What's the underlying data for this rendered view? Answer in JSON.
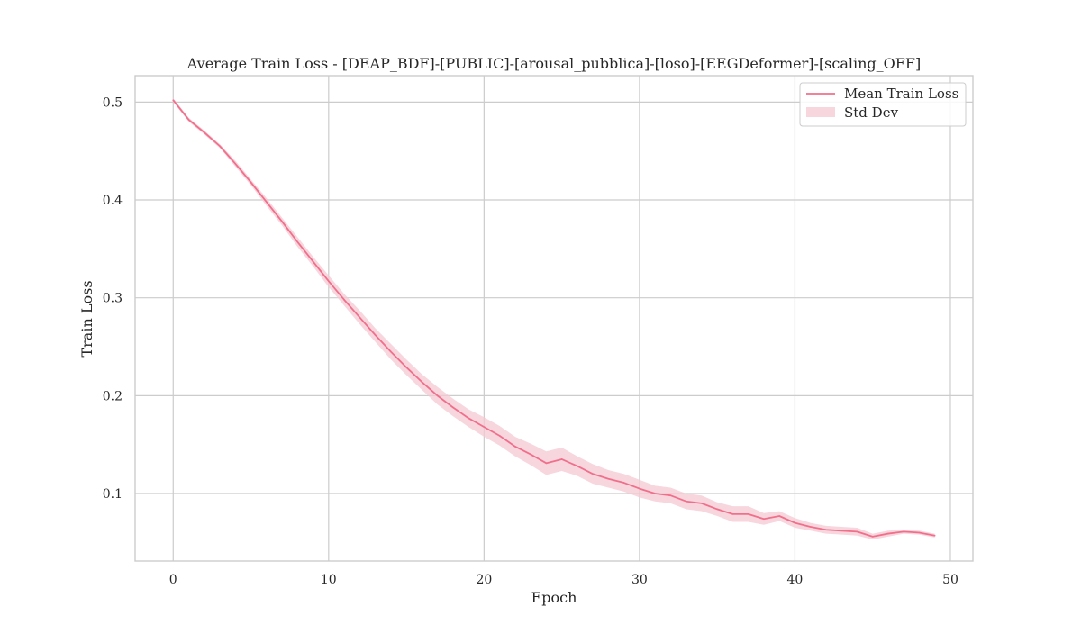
{
  "chart_data": {
    "type": "line",
    "title": "Average Train Loss - [DEAP_BDF]-[PUBLIC]-[arousal_pubblica]-[loso]-[EEGDeformer]-[scaling_OFF]",
    "xlabel": "Epoch",
    "ylabel": "Train Loss",
    "xlim": [
      -2.45,
      51.45
    ],
    "ylim": [
      0.031,
      0.527
    ],
    "x_ticks": [
      0,
      10,
      20,
      30,
      40,
      50
    ],
    "y_ticks": [
      0.1,
      0.2,
      0.3,
      0.4,
      0.5
    ],
    "x_tick_labels": [
      "0",
      "10",
      "20",
      "30",
      "40",
      "50"
    ],
    "y_tick_labels": [
      "0.1",
      "0.2",
      "0.3",
      "0.4",
      "0.5"
    ],
    "grid": true,
    "legend": {
      "placement": "top-right",
      "entries": [
        "Mean Train Loss",
        "Std Dev"
      ]
    },
    "colors": {
      "line": "#f0708c",
      "band": "#f6c8d3",
      "grid": "#cccccc",
      "frame": "#cccccc"
    },
    "x": [
      0,
      1,
      2,
      3,
      4,
      5,
      6,
      7,
      8,
      9,
      10,
      11,
      12,
      13,
      14,
      15,
      16,
      17,
      18,
      19,
      20,
      21,
      22,
      23,
      24,
      25,
      26,
      27,
      28,
      29,
      30,
      31,
      32,
      33,
      34,
      35,
      36,
      37,
      38,
      39,
      40,
      41,
      42,
      43,
      44,
      45,
      46,
      47,
      48,
      49
    ],
    "series": [
      {
        "name": "Mean Train Loss",
        "values": [
          0.502,
          0.482,
          0.469,
          0.455,
          0.437,
          0.418,
          0.398,
          0.378,
          0.357,
          0.337,
          0.317,
          0.298,
          0.28,
          0.262,
          0.245,
          0.229,
          0.214,
          0.2,
          0.188,
          0.177,
          0.168,
          0.159,
          0.148,
          0.14,
          0.131,
          0.135,
          0.128,
          0.12,
          0.115,
          0.111,
          0.105,
          0.1,
          0.098,
          0.092,
          0.09,
          0.084,
          0.079,
          0.079,
          0.074,
          0.077,
          0.07,
          0.066,
          0.063,
          0.062,
          0.061,
          0.056,
          0.059,
          0.061,
          0.06,
          0.057
        ],
        "std": [
          0.002,
          0.002,
          0.002,
          0.002,
          0.003,
          0.003,
          0.004,
          0.004,
          0.005,
          0.005,
          0.006,
          0.006,
          0.007,
          0.007,
          0.008,
          0.008,
          0.008,
          0.009,
          0.009,
          0.009,
          0.01,
          0.01,
          0.01,
          0.011,
          0.012,
          0.012,
          0.01,
          0.01,
          0.009,
          0.009,
          0.009,
          0.008,
          0.008,
          0.008,
          0.008,
          0.007,
          0.008,
          0.008,
          0.006,
          0.005,
          0.005,
          0.004,
          0.004,
          0.004,
          0.004,
          0.003,
          0.003,
          0.002,
          0.002,
          0.002
        ]
      }
    ]
  }
}
